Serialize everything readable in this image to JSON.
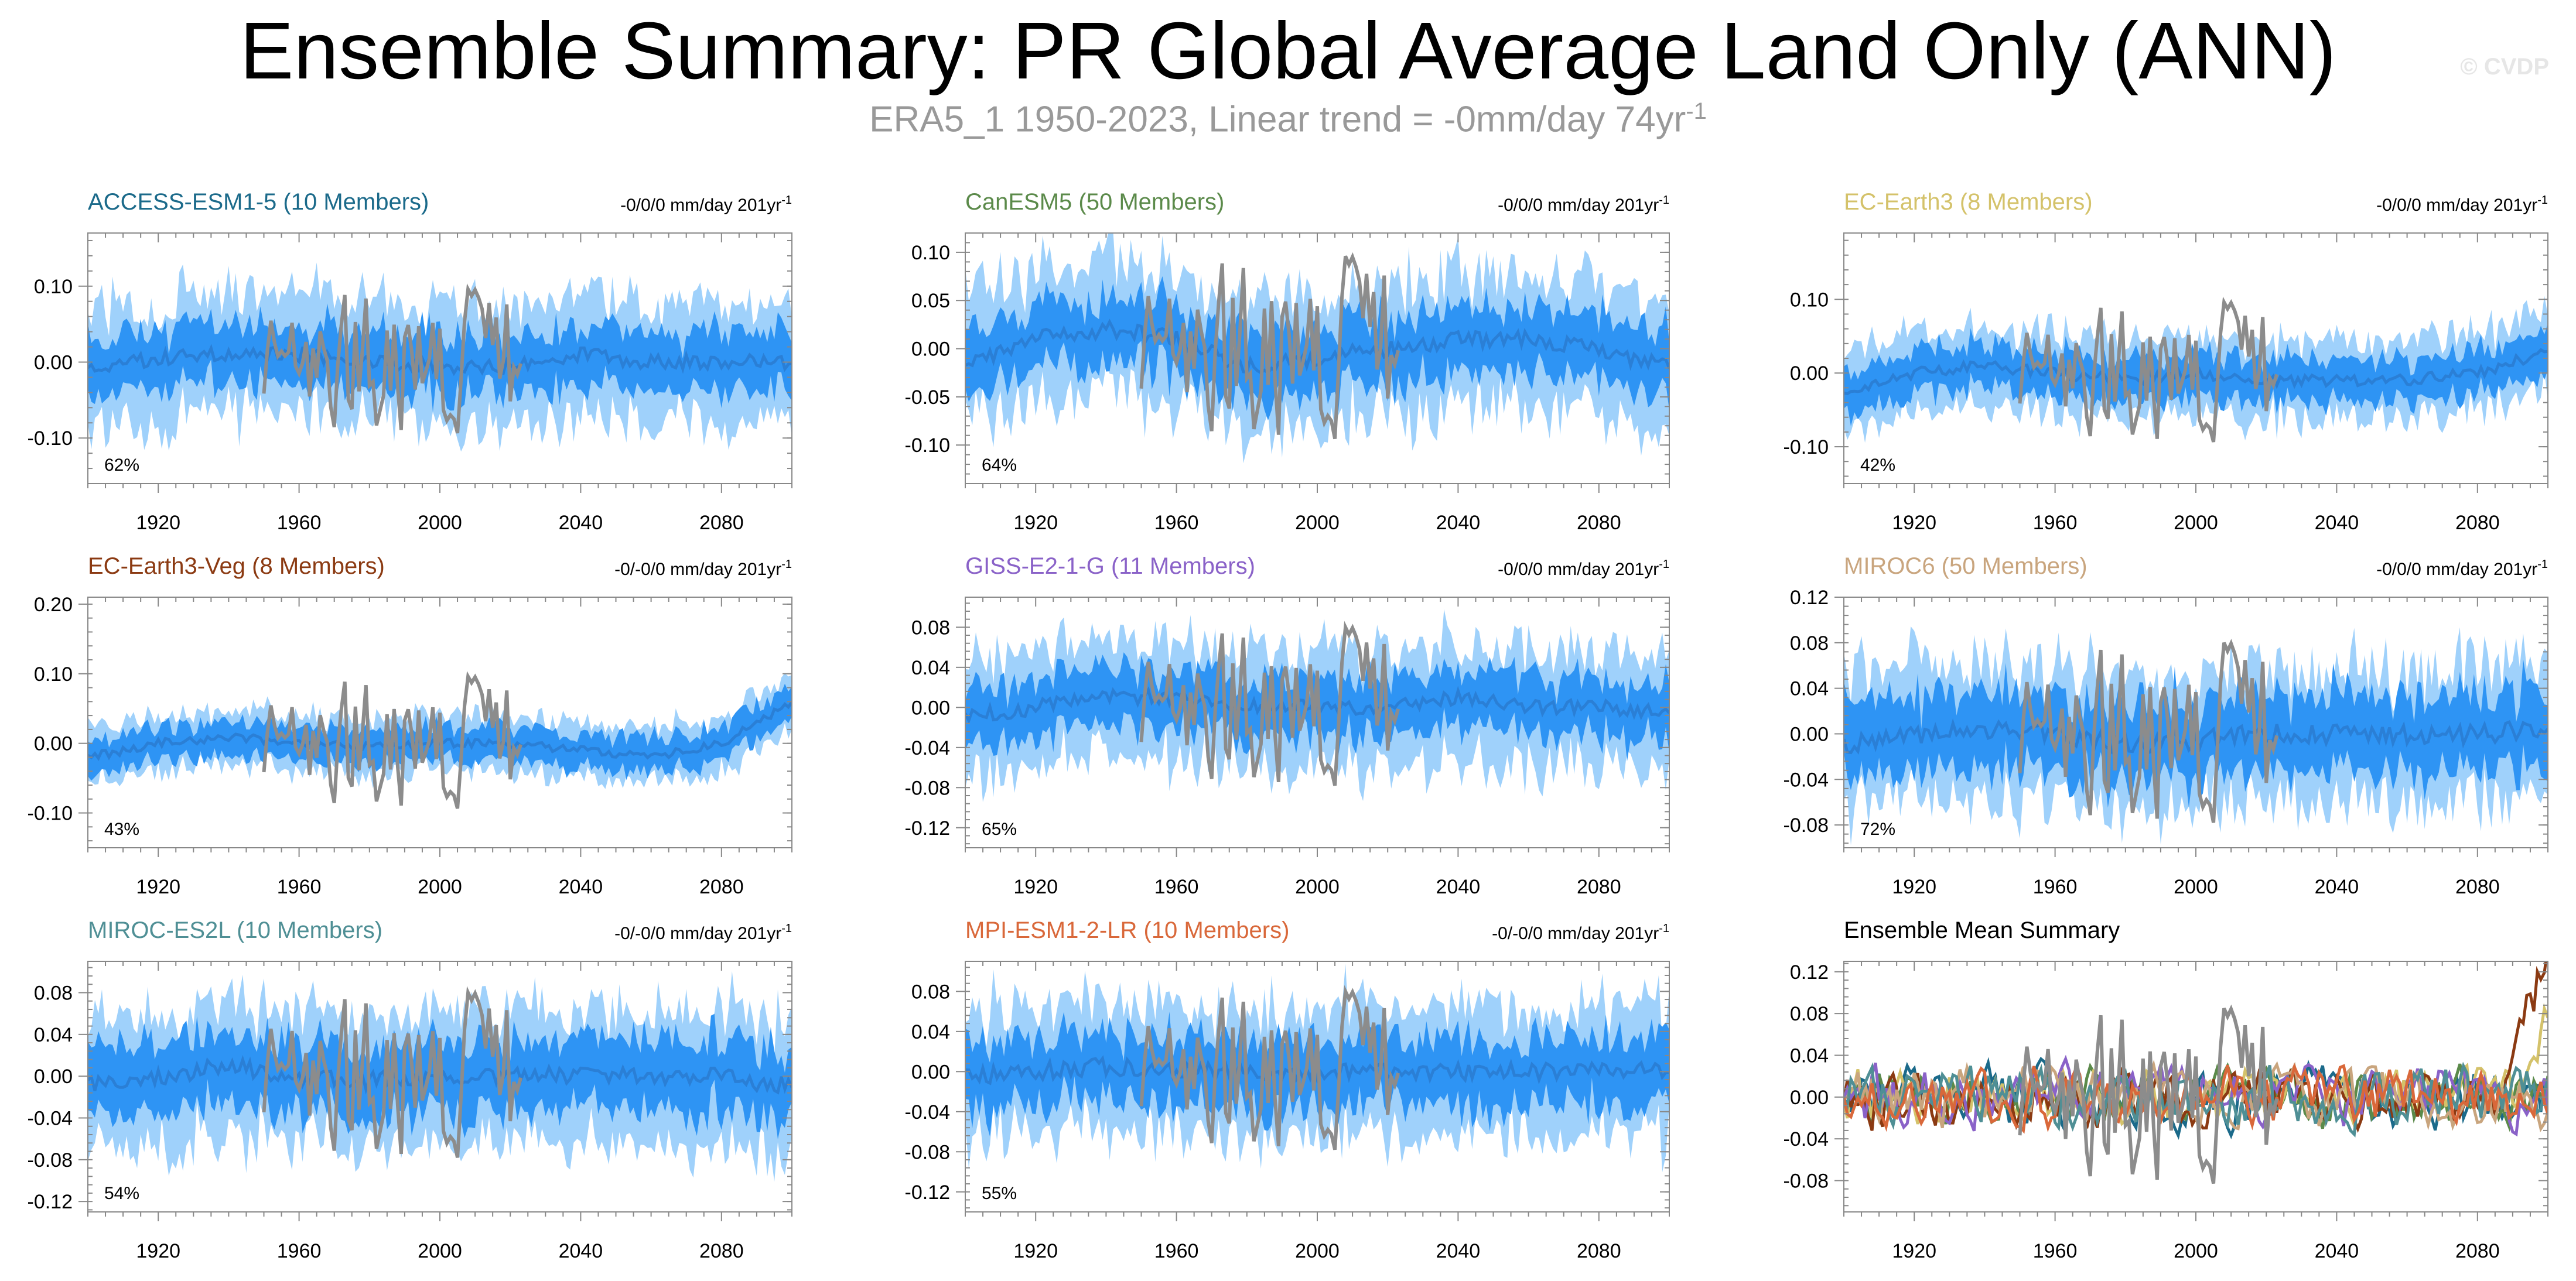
{
  "figure": {
    "title": "Ensemble Summary: PR Global Average Land Only (ANN)",
    "subtitle": "ERA5_1 1950-2023, Linear trend = -0mm/day 74yr",
    "subtitle_sup": "-1",
    "watermark": "© CVDP"
  },
  "colors": {
    "band_outer": "#9fd1fb",
    "band_inner": "#2e94f4",
    "ensemble_mean": "#2a7fd6",
    "observations": "#8c8c8c",
    "axis": "#888888"
  },
  "chart_data": [
    {
      "type": "area",
      "title": "ACCESS-ESM1-5 (10 Members)",
      "title_color": "#1b6a8a",
      "trend_text": "-0/0/0 mm/day 201yr",
      "trend_sup": "-1",
      "pct_label": "62%",
      "xlim": [
        1900,
        2100
      ],
      "ylim": [
        -0.16,
        0.17
      ],
      "yticks": [
        -0.1,
        0.0,
        0.1
      ],
      "ytick_labels": [
        "-0.10",
        "0.00",
        "0.10"
      ],
      "xticks": [
        1920,
        1960,
        2000,
        2040,
        2080
      ],
      "obs_range": [
        1950,
        2023
      ],
      "series": [
        {
          "name": "ensemble_mean",
          "x": [
            1900,
            1920,
            1940,
            1960,
            1980,
            2000,
            2020,
            2040,
            2060,
            2080,
            2100
          ],
          "values": [
            -0.01,
            0.005,
            0.01,
            0.01,
            0.0,
            -0.005,
            -0.005,
            0.01,
            0.0,
            0.0,
            0.0
          ]
        },
        {
          "name": "inner_half_width",
          "values": 0.04
        },
        {
          "name": "outer_half_width",
          "values": 0.08
        },
        {
          "name": "obs_amplitude",
          "values": 0.06
        }
      ]
    },
    {
      "type": "area",
      "title": "CanESM5 (50 Members)",
      "title_color": "#5b8a4a",
      "trend_text": "-0/0/0 mm/day 201yr",
      "trend_sup": "-1",
      "pct_label": "64%",
      "xlim": [
        1900,
        2100
      ],
      "ylim": [
        -0.14,
        0.12
      ],
      "yticks": [
        -0.1,
        -0.05,
        0.0,
        0.05,
        0.1
      ],
      "ytick_labels": [
        "-0.10",
        "-0.05",
        "0.00",
        "0.05",
        "0.10"
      ],
      "xticks": [
        1920,
        1960,
        2000,
        2040,
        2080
      ],
      "obs_range": [
        1950,
        2023
      ],
      "series": [
        {
          "name": "ensemble_mean",
          "x": [
            1900,
            1920,
            1940,
            1960,
            1980,
            2000,
            2020,
            2040,
            2060,
            2080,
            2100
          ],
          "values": [
            -0.02,
            0.01,
            0.02,
            0.01,
            -0.02,
            -0.01,
            0.0,
            0.01,
            0.01,
            0.0,
            -0.02
          ]
        },
        {
          "name": "inner_half_width",
          "values": 0.035
        },
        {
          "name": "outer_half_width",
          "values": 0.07
        },
        {
          "name": "obs_amplitude",
          "values": 0.06
        }
      ]
    },
    {
      "type": "area",
      "title": "EC-Earth3 (8 Members)",
      "title_color": "#d4c26a",
      "trend_text": "-0/0/0 mm/day 201yr",
      "trend_sup": "-1",
      "pct_label": "42%",
      "xlim": [
        1900,
        2100
      ],
      "ylim": [
        -0.15,
        0.19
      ],
      "yticks": [
        -0.1,
        0.0,
        0.1
      ],
      "ytick_labels": [
        "-0.10",
        "0.00",
        "0.10"
      ],
      "xticks": [
        1920,
        1960,
        2000,
        2040,
        2080
      ],
      "obs_range": [
        1950,
        2023
      ],
      "series": [
        {
          "name": "ensemble_mean",
          "x": [
            1900,
            1920,
            1940,
            1960,
            1980,
            2000,
            2020,
            2040,
            2060,
            2080,
            2100
          ],
          "values": [
            -0.03,
            0.0,
            0.01,
            0.0,
            -0.01,
            0.0,
            -0.01,
            -0.01,
            -0.01,
            0.0,
            0.03
          ]
        },
        {
          "name": "inner_half_width",
          "values": 0.03
        },
        {
          "name": "outer_half_width",
          "values": 0.055
        },
        {
          "name": "obs_amplitude",
          "values": 0.06
        }
      ]
    },
    {
      "type": "area",
      "title": "EC-Earth3-Veg (8 Members)",
      "title_color": "#8b3a12",
      "trend_text": "-0/-0/0 mm/day 201yr",
      "trend_sup": "-1",
      "pct_label": "43%",
      "xlim": [
        1900,
        2100
      ],
      "ylim": [
        -0.15,
        0.21
      ],
      "yticks": [
        -0.1,
        0.0,
        0.1,
        0.2
      ],
      "ytick_labels": [
        "-0.10",
        "0.00",
        "0.10",
        "0.20"
      ],
      "xticks": [
        1920,
        1960,
        2000,
        2040,
        2080
      ],
      "obs_range": [
        1950,
        2023
      ],
      "series": [
        {
          "name": "ensemble_mean",
          "x": [
            1900,
            1920,
            1940,
            1960,
            1980,
            2000,
            2020,
            2040,
            2060,
            2080,
            2100
          ],
          "values": [
            -0.02,
            0.0,
            0.01,
            0.0,
            -0.005,
            0.0,
            0.0,
            -0.01,
            -0.02,
            0.0,
            0.06
          ]
        },
        {
          "name": "inner_half_width",
          "values": 0.025
        },
        {
          "name": "outer_half_width",
          "values": 0.04
        },
        {
          "name": "obs_amplitude",
          "values": 0.06
        }
      ]
    },
    {
      "type": "area",
      "title": "GISS-E2-1-G (11 Members)",
      "title_color": "#8a62c8",
      "trend_text": "-0/0/0 mm/day 201yr",
      "trend_sup": "-1",
      "pct_label": "65%",
      "xlim": [
        1900,
        2100
      ],
      "ylim": [
        -0.14,
        0.11
      ],
      "yticks": [
        -0.12,
        -0.08,
        -0.04,
        0.0,
        0.04,
        0.08
      ],
      "ytick_labels": [
        "-0.12",
        "-0.08",
        "-0.04",
        "0.00",
        "0.04",
        "0.08"
      ],
      "xticks": [
        1920,
        1960,
        2000,
        2040,
        2080
      ],
      "obs_range": [
        1950,
        2023
      ],
      "series": [
        {
          "name": "ensemble_mean",
          "x": [
            1900,
            1920,
            1940,
            1960,
            1980,
            2000,
            2020,
            2040,
            2060,
            2080,
            2100
          ],
          "values": [
            -0.01,
            0.0,
            0.01,
            0.01,
            0.0,
            0.0,
            0.0,
            0.01,
            0.0,
            0.0,
            -0.005
          ]
        },
        {
          "name": "inner_half_width",
          "values": 0.03
        },
        {
          "name": "outer_half_width",
          "values": 0.06
        },
        {
          "name": "obs_amplitude",
          "values": 0.05
        }
      ]
    },
    {
      "type": "area",
      "title": "MIROC6 (50 Members)",
      "title_color": "#c9a57e",
      "trend_text": "-0/0/0 mm/day 201yr",
      "trend_sup": "-1",
      "pct_label": "72%",
      "xlim": [
        1900,
        2100
      ],
      "ylim": [
        -0.1,
        0.12
      ],
      "yticks": [
        -0.08,
        -0.04,
        0.0,
        0.04,
        0.08,
        0.12
      ],
      "ytick_labels": [
        "-0.08",
        "-0.04",
        "0.00",
        "0.04",
        "0.08",
        "0.12"
      ],
      "xticks": [
        1920,
        1960,
        2000,
        2040,
        2080
      ],
      "obs_range": [
        1950,
        2023
      ],
      "series": [
        {
          "name": "ensemble_mean",
          "x": [
            1900,
            1920,
            1940,
            1960,
            1980,
            2000,
            2020,
            2040,
            2060,
            2080,
            2100
          ],
          "values": [
            -0.01,
            0.0,
            0.005,
            0.0,
            -0.01,
            -0.005,
            0.0,
            0.0,
            0.0,
            0.0,
            0.005
          ]
        },
        {
          "name": "inner_half_width",
          "values": 0.035
        },
        {
          "name": "outer_half_width",
          "values": 0.06
        },
        {
          "name": "obs_amplitude",
          "values": 0.05
        }
      ]
    },
    {
      "type": "area",
      "title": "MIROC-ES2L (10 Members)",
      "title_color": "#4f8f95",
      "trend_text": "-0/-0/0 mm/day 201yr",
      "trend_sup": "-1",
      "pct_label": "54%",
      "xlim": [
        1900,
        2100
      ],
      "ylim": [
        -0.13,
        0.11
      ],
      "yticks": [
        -0.12,
        -0.08,
        -0.04,
        0.0,
        0.04,
        0.08
      ],
      "ytick_labels": [
        "-0.12",
        "-0.08",
        "-0.04",
        "0.00",
        "0.04",
        "0.08"
      ],
      "xticks": [
        1920,
        1960,
        2000,
        2040,
        2080
      ],
      "obs_range": [
        1950,
        2023
      ],
      "series": [
        {
          "name": "ensemble_mean",
          "x": [
            1900,
            1920,
            1940,
            1960,
            1980,
            2000,
            2020,
            2040,
            2060,
            2080,
            2100
          ],
          "values": [
            -0.01,
            0.0,
            0.01,
            0.0,
            -0.005,
            0.0,
            0.0,
            0.0,
            0.0,
            0.0,
            -0.01
          ]
        },
        {
          "name": "inner_half_width",
          "values": 0.035
        },
        {
          "name": "outer_half_width",
          "values": 0.065
        },
        {
          "name": "obs_amplitude",
          "values": 0.05
        }
      ]
    },
    {
      "type": "area",
      "title": "MPI-ESM1-2-LR (10 Members)",
      "title_color": "#d9683a",
      "trend_text": "-0/-0/0 mm/day 201yr",
      "trend_sup": "-1",
      "pct_label": "55%",
      "xlim": [
        1900,
        2100
      ],
      "ylim": [
        -0.14,
        0.11
      ],
      "yticks": [
        -0.12,
        -0.08,
        -0.04,
        0.0,
        0.04,
        0.08
      ],
      "ytick_labels": [
        "-0.12",
        "-0.08",
        "-0.04",
        "0.00",
        "0.04",
        "0.08"
      ],
      "xticks": [
        1920,
        1960,
        2000,
        2040,
        2080
      ],
      "obs_range": [
        1950,
        2023
      ],
      "series": [
        {
          "name": "ensemble_mean",
          "x": [
            1900,
            1920,
            1940,
            1960,
            1980,
            2000,
            2020,
            2040,
            2060,
            2080,
            2100
          ],
          "values": [
            -0.005,
            0.0,
            0.005,
            0.0,
            0.0,
            0.0,
            0.0,
            0.0,
            0.0,
            0.0,
            0.0
          ]
        },
        {
          "name": "inner_half_width",
          "values": 0.035
        },
        {
          "name": "outer_half_width",
          "values": 0.065
        },
        {
          "name": "obs_amplitude",
          "values": 0.05
        }
      ]
    },
    {
      "type": "line",
      "title": "Ensemble Mean Summary",
      "title_color": "#000000",
      "trend_text": "",
      "trend_sup": "",
      "pct_label": "",
      "xlim": [
        1900,
        2100
      ],
      "ylim": [
        -0.11,
        0.13
      ],
      "yticks": [
        -0.08,
        -0.04,
        0.0,
        0.04,
        0.08,
        0.12
      ],
      "ytick_labels": [
        "-0.08",
        "-0.04",
        "0.00",
        "0.04",
        "0.08",
        "0.12"
      ],
      "xticks": [
        1920,
        1960,
        2000,
        2040,
        2080
      ],
      "obs_range": [
        1950,
        2023
      ],
      "series": [
        {
          "name": "ACCESS-ESM1-5",
          "color": "#1b6a8a"
        },
        {
          "name": "CanESM5",
          "color": "#5b8a4a"
        },
        {
          "name": "EC-Earth3",
          "color": "#d4c26a"
        },
        {
          "name": "EC-Earth3-Veg",
          "color": "#8b3a12"
        },
        {
          "name": "GISS-E2-1-G",
          "color": "#8a62c8"
        },
        {
          "name": "MIROC6",
          "color": "#c9a57e"
        },
        {
          "name": "MIROC-ES2L",
          "color": "#4f8f95"
        },
        {
          "name": "MPI-ESM1-2-LR",
          "color": "#d9683a"
        },
        {
          "name": "ERA5_1",
          "color": "#8c8c8c"
        }
      ]
    }
  ]
}
